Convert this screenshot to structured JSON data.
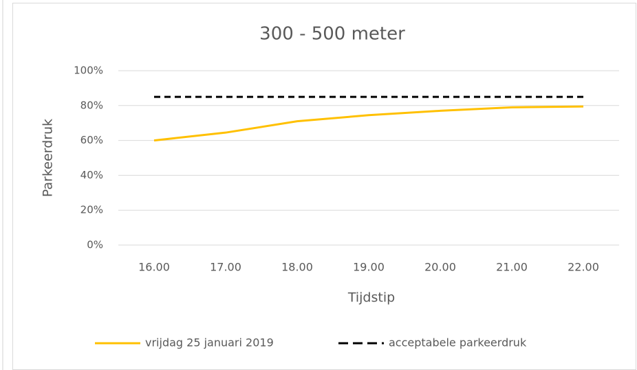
{
  "chart_data": {
    "type": "line",
    "title": "300 - 500 meter",
    "x_label": "Tijdstip",
    "y_label": "Parkeerdruk",
    "categories": [
      "16.00",
      "17.00",
      "18.00",
      "19.00",
      "20.00",
      "21.00",
      "22.00"
    ],
    "series": [
      {
        "name": "vrijdag 25 januari 2019",
        "color": "#ffc000",
        "dash": "solid",
        "values": [
          60,
          64.5,
          71,
          74.5,
          77,
          79,
          79.5
        ]
      },
      {
        "name": "acceptabele parkeerdruk",
        "color": "#000000",
        "dash": "dashed",
        "values": [
          85,
          85,
          85,
          85,
          85,
          85,
          85
        ]
      }
    ],
    "ylim": [
      0,
      100
    ],
    "yticks": [
      {
        "value": 0,
        "label": "0%"
      },
      {
        "value": 20,
        "label": "20%"
      },
      {
        "value": 40,
        "label": "40%"
      },
      {
        "value": 60,
        "label": "60%"
      },
      {
        "value": 80,
        "label": "80%"
      },
      {
        "value": 100,
        "label": "100%"
      }
    ],
    "grid": true,
    "legend": "bottom"
  }
}
